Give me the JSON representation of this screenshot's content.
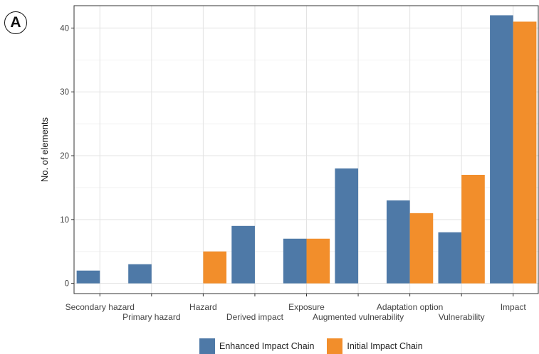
{
  "panel_label": "A",
  "colors": {
    "enhanced": "#4e79a7",
    "initial": "#f28e2b",
    "grid_major": "#e3e3e3",
    "grid_minor": "#f2f2f2",
    "axis_text": "#444444"
  },
  "chart_data": {
    "type": "bar",
    "ylabel": "No. of elements",
    "xlabel": "",
    "ylim": [
      -1.6,
      43.5
    ],
    "yticks": [
      0,
      10,
      20,
      30,
      40
    ],
    "grid": true,
    "legend_position": "bottom",
    "categories": [
      "Secondary hazard",
      "Primary hazard",
      "Hazard",
      "Derived impact",
      "Exposure",
      "Augmented vulnerability",
      "Adaptation option",
      "Vulnerability",
      "Impact"
    ],
    "series": [
      {
        "name": "Enhanced Impact Chain",
        "color": "#4e79a7",
        "values": [
          2,
          3,
          0,
          9,
          7,
          18,
          13,
          8,
          42
        ]
      },
      {
        "name": "Initial Impact Chain",
        "color": "#f28e2b",
        "values": [
          0,
          0,
          5,
          0,
          7,
          0,
          11,
          17,
          41
        ]
      }
    ]
  }
}
